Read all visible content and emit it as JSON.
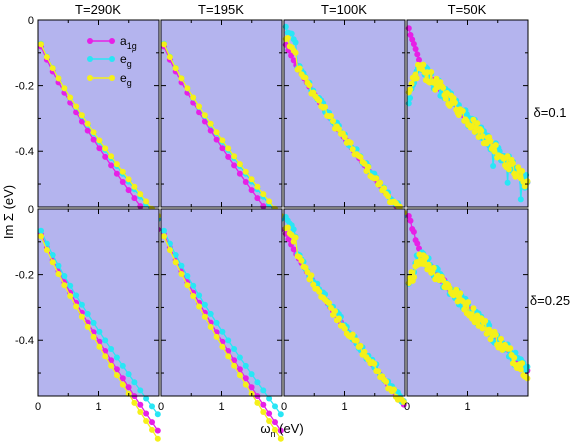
{
  "chart_data": {
    "type": "scatter",
    "columns": [
      "T=290K",
      "T=195K",
      "T=100K",
      "T=50K"
    ],
    "rows": [
      "δ=0.1",
      "δ=0.25"
    ],
    "xlabel": "ωn (eV)",
    "xlabel_parts": {
      "main": "ω",
      "sub": "n",
      "unit": " (eV)"
    },
    "ylabel": "Im Σ (eV)",
    "xlim": [
      0,
      2
    ],
    "ylim": [
      -0.57,
      0
    ],
    "xticks": [
      0,
      1
    ],
    "xtick_labels": [
      "0",
      "1"
    ],
    "yticks": [
      0,
      -0.2,
      -0.4
    ],
    "ytick_labels": [
      "0",
      "-0.2",
      "-0.4"
    ],
    "legend": {
      "position": "top-left of first panel",
      "entries": [
        {
          "base": "a",
          "sub": "1g",
          "sup": ""
        },
        {
          "base": "e",
          "sub": "g",
          "sup": "'"
        },
        {
          "base": "e",
          "sub": "g",
          "sup": ""
        }
      ]
    },
    "series_colors": [
      "#e620e6",
      "#28e6f5",
      "#f5f019"
    ],
    "background_color": "#b4b4ee",
    "series_order": [
      "a1g",
      "eg'",
      "eg"
    ]
  }
}
